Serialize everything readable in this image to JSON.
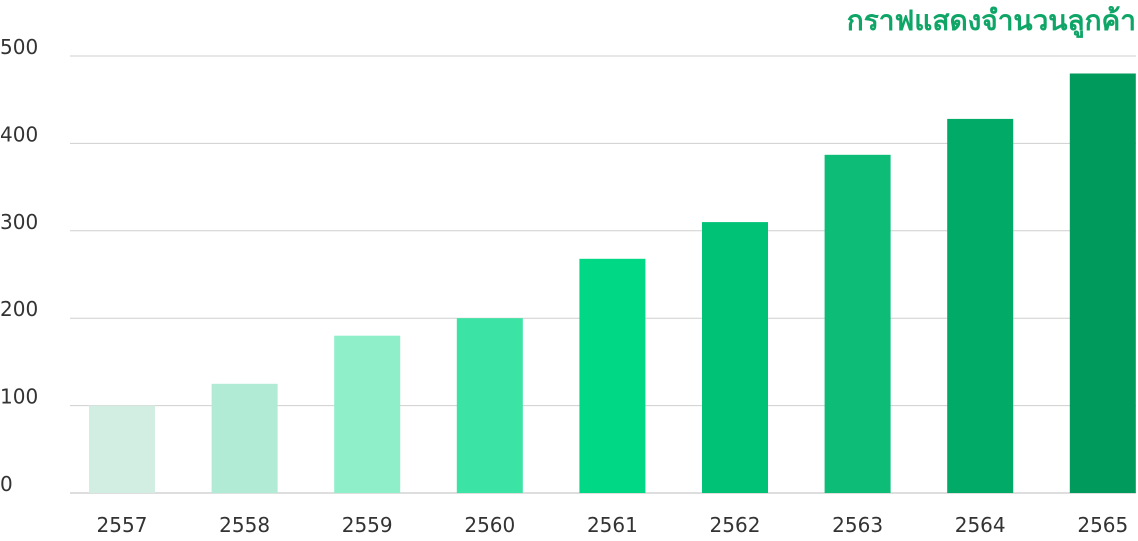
{
  "chart_data": {
    "type": "bar",
    "title": "กราฟแสดงจำนวนลูกค้า",
    "xlabel": "",
    "ylabel": "",
    "categories": [
      "2557",
      "2558",
      "2559",
      "2560",
      "2561",
      "2562",
      "2563",
      "2564",
      "2565"
    ],
    "values": [
      100,
      125,
      180,
      200,
      268,
      310,
      387,
      428,
      480
    ],
    "ylim": [
      0,
      500
    ],
    "yticks": [
      0,
      100,
      200,
      300,
      400,
      500
    ],
    "ytick_labels": [
      "0",
      "100",
      "200",
      "300",
      "400",
      "500"
    ],
    "grid": true,
    "legend": "none"
  },
  "colors": {
    "title": "#0fa567",
    "bars": [
      "#d2ede2",
      "#b1ead5",
      "#8fefc9",
      "#3be3a4",
      "#00d885",
      "#00c276",
      "#0dbd77",
      "#01aa66",
      "#009a5c"
    ],
    "grid": "#cfcfcf",
    "tick_text": "#333333"
  }
}
